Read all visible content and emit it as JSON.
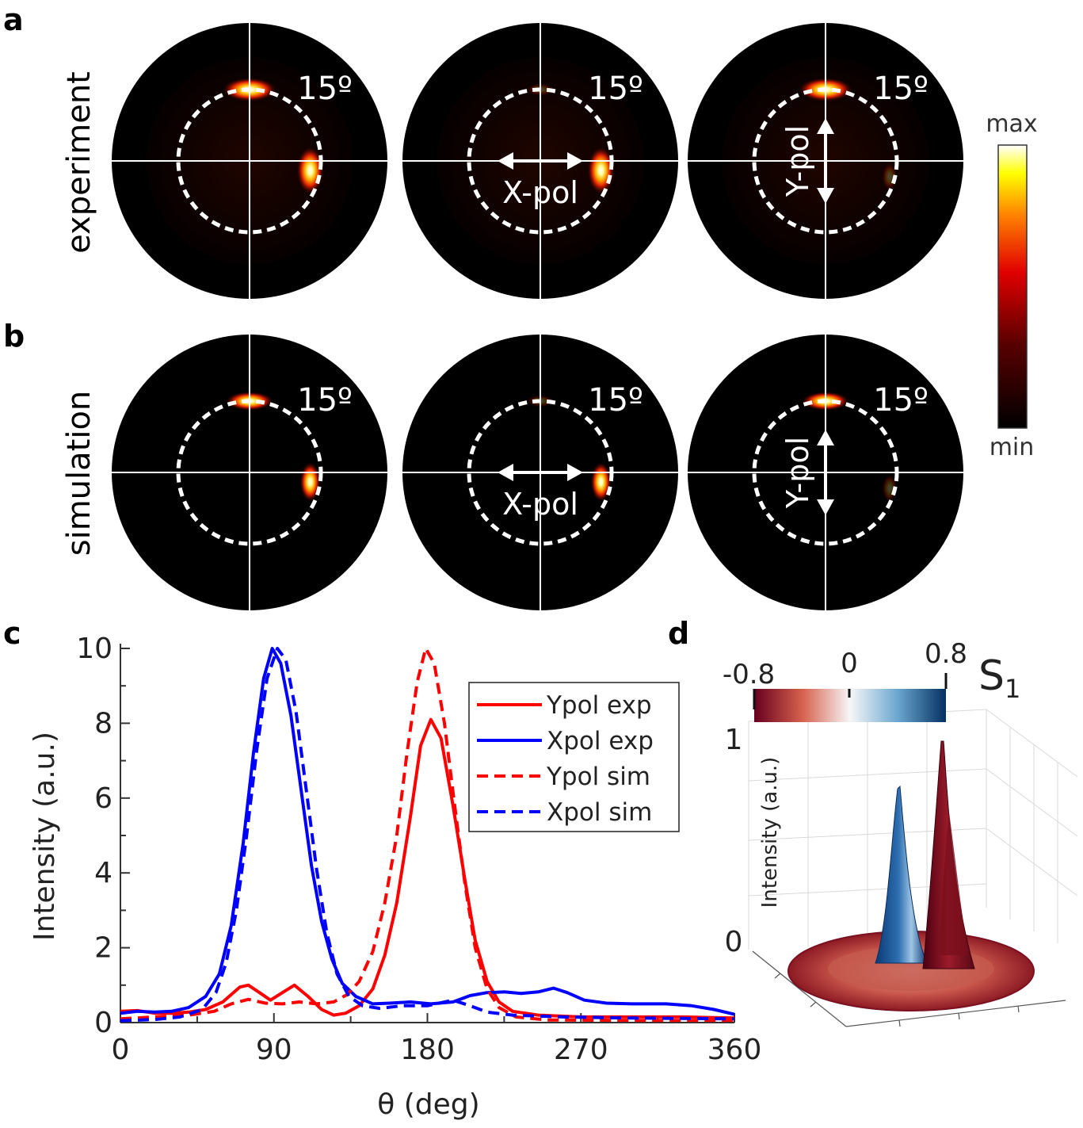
{
  "panels": {
    "a": "a",
    "b": "b",
    "c": "c",
    "d": "d"
  },
  "row_labels": {
    "experiment": "experiment",
    "simulation": "simulation"
  },
  "polar_maps": {
    "angle_label": "15º",
    "pol_x": "X-pol",
    "pol_y": "Y-pol"
  },
  "colorbar": {
    "max_label": "max",
    "min_label": "min"
  },
  "colors": {
    "red": "#ff0000",
    "blue": "#0000ff",
    "s1_neg": "#7a0f1c",
    "s1_pos": "#1a4f8a"
  },
  "chart_data": [
    {
      "type": "line",
      "xlabel": "θ (deg)",
      "ylabel": "Intensity (a.u.)",
      "xlim": [
        0,
        360
      ],
      "ylim": [
        0,
        10
      ],
      "xticks": [
        0,
        90,
        180,
        270,
        360
      ],
      "yticks": [
        0,
        2,
        4,
        6,
        8,
        10
      ],
      "legend_position": "top-right",
      "series": [
        {
          "name": "Ypol exp",
          "color": "#ff0000",
          "dash": false,
          "points": [
            [
              0,
              0.3
            ],
            [
              10,
              0.32
            ],
            [
              20,
              0.25
            ],
            [
              30,
              0.25
            ],
            [
              40,
              0.28
            ],
            [
              50,
              0.35
            ],
            [
              60,
              0.55
            ],
            [
              70,
              0.95
            ],
            [
              75,
              1.0
            ],
            [
              80,
              0.85
            ],
            [
              88,
              0.6
            ],
            [
              95,
              0.8
            ],
            [
              102,
              1.0
            ],
            [
              110,
              0.7
            ],
            [
              118,
              0.35
            ],
            [
              125,
              0.2
            ],
            [
              132,
              0.25
            ],
            [
              140,
              0.45
            ],
            [
              148,
              0.9
            ],
            [
              155,
              1.8
            ],
            [
              162,
              3.2
            ],
            [
              170,
              5.5
            ],
            [
              176,
              7.4
            ],
            [
              182,
              8.1
            ],
            [
              188,
              7.6
            ],
            [
              195,
              5.8
            ],
            [
              202,
              3.8
            ],
            [
              208,
              2.2
            ],
            [
              215,
              1.1
            ],
            [
              222,
              0.55
            ],
            [
              230,
              0.3
            ],
            [
              245,
              0.2
            ],
            [
              270,
              0.15
            ],
            [
              300,
              0.15
            ],
            [
              330,
              0.15
            ],
            [
              360,
              0.12
            ]
          ]
        },
        {
          "name": "Xpol exp",
          "color": "#0000ff",
          "dash": false,
          "points": [
            [
              0,
              0.25
            ],
            [
              10,
              0.3
            ],
            [
              20,
              0.28
            ],
            [
              30,
              0.3
            ],
            [
              40,
              0.4
            ],
            [
              50,
              0.7
            ],
            [
              58,
              1.3
            ],
            [
              65,
              2.6
            ],
            [
              72,
              4.8
            ],
            [
              78,
              7.2
            ],
            [
              84,
              9.2
            ],
            [
              89,
              10.0
            ],
            [
              94,
              9.6
            ],
            [
              100,
              8.2
            ],
            [
              106,
              6.2
            ],
            [
              112,
              4.2
            ],
            [
              118,
              2.7
            ],
            [
              124,
              1.7
            ],
            [
              130,
              1.05
            ],
            [
              138,
              0.7
            ],
            [
              148,
              0.5
            ],
            [
              158,
              0.52
            ],
            [
              170,
              0.55
            ],
            [
              182,
              0.5
            ],
            [
              195,
              0.55
            ],
            [
              205,
              0.72
            ],
            [
              215,
              0.8
            ],
            [
              225,
              0.82
            ],
            [
              235,
              0.78
            ],
            [
              245,
              0.82
            ],
            [
              254,
              0.92
            ],
            [
              262,
              0.8
            ],
            [
              272,
              0.6
            ],
            [
              285,
              0.52
            ],
            [
              300,
              0.5
            ],
            [
              320,
              0.5
            ],
            [
              335,
              0.45
            ],
            [
              348,
              0.35
            ],
            [
              360,
              0.22
            ]
          ]
        },
        {
          "name": "Ypol sim",
          "color": "#ff0000",
          "dash": true,
          "points": [
            [
              0,
              0.1
            ],
            [
              20,
              0.15
            ],
            [
              40,
              0.2
            ],
            [
              55,
              0.3
            ],
            [
              65,
              0.5
            ],
            [
              75,
              0.62
            ],
            [
              85,
              0.52
            ],
            [
              95,
              0.5
            ],
            [
              105,
              0.55
            ],
            [
              115,
              0.5
            ],
            [
              125,
              0.55
            ],
            [
              133,
              0.75
            ],
            [
              140,
              1.1
            ],
            [
              148,
              1.9
            ],
            [
              155,
              3.2
            ],
            [
              162,
              5.0
            ],
            [
              168,
              7.2
            ],
            [
              174,
              9.1
            ],
            [
              179,
              10.0
            ],
            [
              184,
              9.6
            ],
            [
              190,
              8.0
            ],
            [
              196,
              5.8
            ],
            [
              202,
              3.7
            ],
            [
              208,
              2.0
            ],
            [
              215,
              0.9
            ],
            [
              222,
              0.4
            ],
            [
              232,
              0.15
            ],
            [
              250,
              0.07
            ],
            [
              300,
              0.06
            ],
            [
              360,
              0.06
            ]
          ]
        },
        {
          "name": "Xpol sim",
          "color": "#0000ff",
          "dash": true,
          "points": [
            [
              0,
              0.05
            ],
            [
              20,
              0.08
            ],
            [
              35,
              0.15
            ],
            [
              48,
              0.35
            ],
            [
              56,
              0.8
            ],
            [
              62,
              1.6
            ],
            [
              68,
              3.0
            ],
            [
              74,
              5.0
            ],
            [
              80,
              7.3
            ],
            [
              86,
              9.2
            ],
            [
              92,
              10.0
            ],
            [
              97,
              9.7
            ],
            [
              103,
              8.3
            ],
            [
              109,
              6.2
            ],
            [
              115,
              4.1
            ],
            [
              121,
              2.4
            ],
            [
              127,
              1.3
            ],
            [
              134,
              0.7
            ],
            [
              142,
              0.45
            ],
            [
              152,
              0.38
            ],
            [
              165,
              0.45
            ],
            [
              180,
              0.45
            ],
            [
              195,
              0.6
            ],
            [
              205,
              0.45
            ],
            [
              215,
              0.28
            ],
            [
              230,
              0.2
            ],
            [
              260,
              0.15
            ],
            [
              300,
              0.12
            ],
            [
              360,
              0.1
            ]
          ]
        }
      ]
    },
    {
      "type": "surface",
      "ylabel": "Intensity (a.u.)",
      "z_ticks": [
        "0",
        "1"
      ],
      "colorbar_title": "S",
      "colorbar_subscript": "1",
      "colorbar_ticks": [
        "-0.8",
        "0",
        "0.8"
      ]
    }
  ]
}
